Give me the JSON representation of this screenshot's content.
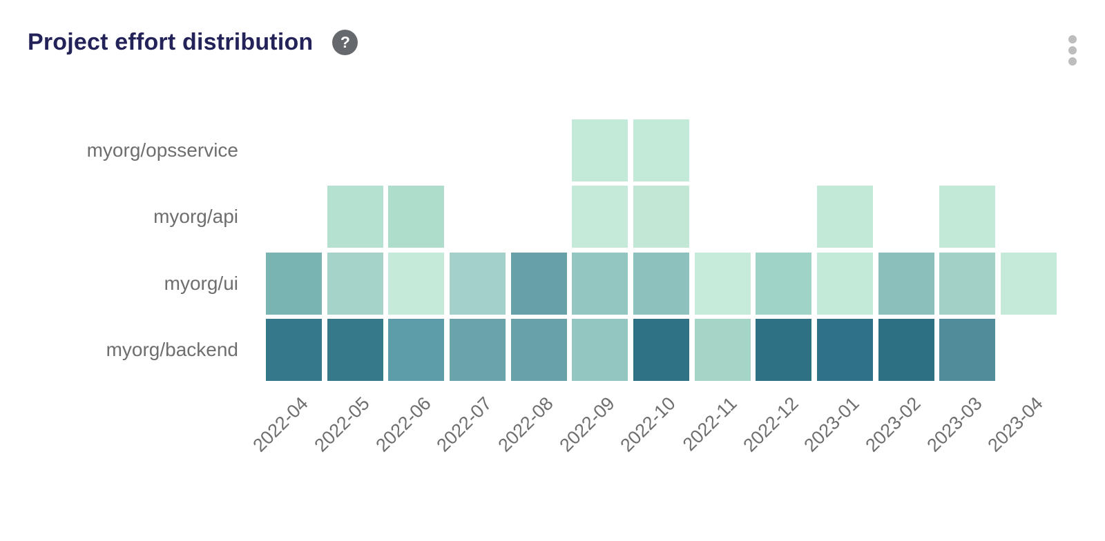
{
  "header": {
    "title": "Project effort distribution"
  },
  "icons": {
    "help": "question-mark-icon",
    "menu": "kebab-menu-icon"
  },
  "chart_data": {
    "type": "heatmap",
    "title": "Project effort distribution",
    "x_categories": [
      "2022-04",
      "2022-05",
      "2022-06",
      "2022-07",
      "2022-08",
      "2022-09",
      "2022-10",
      "2022-11",
      "2022-12",
      "2023-01",
      "2023-02",
      "2023-03",
      "2023-04"
    ],
    "y_categories": [
      "myorg/opsservice",
      "myorg/api",
      "myorg/ui",
      "myorg/backend"
    ],
    "layout": {
      "x_label_rotation": -45,
      "grid": "off",
      "legend": "none",
      "empty_cells_blank": true
    },
    "colorscale": {
      "low_color": "#c7ecdc",
      "high_color": "#2e7084",
      "low_value": 0,
      "high_value": 1
    },
    "cells": [
      {
        "row": "myorg/opsservice",
        "col": "2022-09",
        "intensity": 0.05,
        "color": "#c3e9d8"
      },
      {
        "row": "myorg/opsservice",
        "col": "2022-10",
        "intensity": 0.05,
        "color": "#c3e9d8"
      },
      {
        "row": "myorg/api",
        "col": "2022-05",
        "intensity": 0.12,
        "color": "#b5e2d0"
      },
      {
        "row": "myorg/api",
        "col": "2022-06",
        "intensity": 0.15,
        "color": "#aeddcb"
      },
      {
        "row": "myorg/api",
        "col": "2022-09",
        "intensity": 0.05,
        "color": "#c5ead9"
      },
      {
        "row": "myorg/api",
        "col": "2022-10",
        "intensity": 0.07,
        "color": "#c2e7d5"
      },
      {
        "row": "myorg/api",
        "col": "2023-01",
        "intensity": 0.06,
        "color": "#c2e9d8"
      },
      {
        "row": "myorg/api",
        "col": "2023-03",
        "intensity": 0.06,
        "color": "#c2e9d8"
      },
      {
        "row": "myorg/ui",
        "col": "2022-04",
        "intensity": 0.5,
        "color": "#79b3b2"
      },
      {
        "row": "myorg/ui",
        "col": "2022-05",
        "intensity": 0.27,
        "color": "#a5d3c9"
      },
      {
        "row": "myorg/ui",
        "col": "2022-06",
        "intensity": 0.06,
        "color": "#c5ead9"
      },
      {
        "row": "myorg/ui",
        "col": "2022-07",
        "intensity": 0.28,
        "color": "#a3d1c9"
      },
      {
        "row": "myorg/ui",
        "col": "2022-08",
        "intensity": 0.63,
        "color": "#67a0a6"
      },
      {
        "row": "myorg/ui",
        "col": "2022-09",
        "intensity": 0.38,
        "color": "#93c6c0"
      },
      {
        "row": "myorg/ui",
        "col": "2022-10",
        "intensity": 0.42,
        "color": "#8dc1bd"
      },
      {
        "row": "myorg/ui",
        "col": "2022-11",
        "intensity": 0.05,
        "color": "#c6ebdb"
      },
      {
        "row": "myorg/ui",
        "col": "2022-12",
        "intensity": 0.3,
        "color": "#a0d3c8"
      },
      {
        "row": "myorg/ui",
        "col": "2023-01",
        "intensity": 0.06,
        "color": "#c3e9d8"
      },
      {
        "row": "myorg/ui",
        "col": "2023-02",
        "intensity": 0.44,
        "color": "#8abfbc"
      },
      {
        "row": "myorg/ui",
        "col": "2023-03",
        "intensity": 0.3,
        "color": "#a0d0c6"
      },
      {
        "row": "myorg/ui",
        "col": "2023-04",
        "intensity": 0.06,
        "color": "#c5ead9"
      },
      {
        "row": "myorg/backend",
        "col": "2022-04",
        "intensity": 0.88,
        "color": "#35788b"
      },
      {
        "row": "myorg/backend",
        "col": "2022-05",
        "intensity": 0.88,
        "color": "#35798b"
      },
      {
        "row": "myorg/backend",
        "col": "2022-06",
        "intensity": 0.68,
        "color": "#5d9daa"
      },
      {
        "row": "myorg/backend",
        "col": "2022-07",
        "intensity": 0.6,
        "color": "#6aa3aa"
      },
      {
        "row": "myorg/backend",
        "col": "2022-08",
        "intensity": 0.62,
        "color": "#68a1a8"
      },
      {
        "row": "myorg/backend",
        "col": "2022-09",
        "intensity": 0.37,
        "color": "#94c6c1"
      },
      {
        "row": "myorg/backend",
        "col": "2022-10",
        "intensity": 0.95,
        "color": "#2f7285"
      },
      {
        "row": "myorg/backend",
        "col": "2022-11",
        "intensity": 0.26,
        "color": "#a4d5c7"
      },
      {
        "row": "myorg/backend",
        "col": "2022-12",
        "intensity": 0.96,
        "color": "#2e7084"
      },
      {
        "row": "myorg/backend",
        "col": "2023-01",
        "intensity": 0.95,
        "color": "#2f7186"
      },
      {
        "row": "myorg/backend",
        "col": "2023-02",
        "intensity": 0.96,
        "color": "#2e7083"
      },
      {
        "row": "myorg/backend",
        "col": "2023-03",
        "intensity": 0.76,
        "color": "#4f8d9b"
      }
    ]
  }
}
